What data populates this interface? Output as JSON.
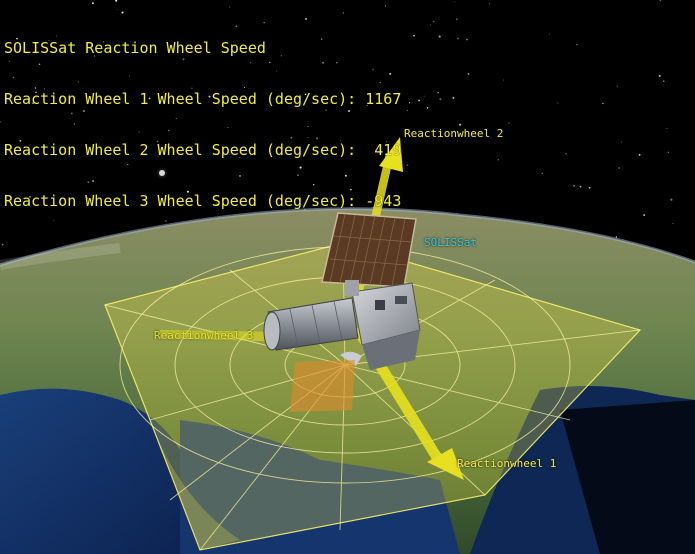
{
  "hud": {
    "title": "SOLISSat Reaction Wheel Speed",
    "rows": [
      "Reaction Wheel 1 Wheel Speed (deg/sec): 1167",
      "Reaction Wheel 2 Wheel Speed (deg/sec):  419",
      "Reaction Wheel 3 Wheel Speed (deg/sec): -943"
    ]
  },
  "labels": {
    "wheel2": "Reactionwheel 2",
    "wheel1": "Reactionwheel 1",
    "wheel3": "Reactionwheel 3",
    "satellite": "SOLISSat"
  },
  "colors": {
    "hud_text": "#f2ee3a",
    "wheel_label": "#f2ee3a",
    "sat_label": "#38c8e0",
    "vector": "#e6e020",
    "plane": "#f4e640",
    "space": "#000000"
  }
}
